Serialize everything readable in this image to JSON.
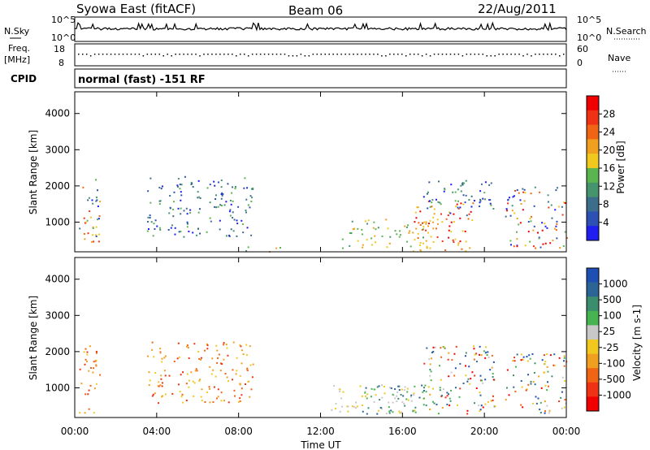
{
  "header": {
    "title": "Syowa East (fitACF)",
    "beam": "Beam 06",
    "date": "22/Aug/2011"
  },
  "top_panels": {
    "nsky_label": "N.Sky",
    "nsky_ticks": [
      "10^5",
      "10^0"
    ],
    "nsearch_label": "N.Search",
    "nsearch_ticks": [
      "10^5",
      "10^0"
    ],
    "freq_label": "Freq.",
    "freq_unit": "[MHz]",
    "freq_ticks": [
      "18",
      "8"
    ],
    "nave_label": "Nave",
    "nave_ticks": [
      "60",
      "0"
    ],
    "cpid_label": "CPID",
    "cpid_text": "normal (fast) -151 RF"
  },
  "chart_data": [
    {
      "type": "heatmap",
      "name": "power-panel",
      "ylabel": "Slant Range [km]",
      "yticks": [
        1000,
        2000,
        3000,
        4000
      ],
      "ylim": [
        180,
        4600
      ],
      "xticks": [
        "00:00",
        "04:00",
        "08:00",
        "12:00",
        "16:00",
        "20:00",
        "00:00"
      ],
      "xlim_hours": [
        0,
        24
      ],
      "colorbar": {
        "label": "Power [dB]",
        "ticks": [
          "4",
          "8",
          "12",
          "16",
          "20",
          "24",
          "28"
        ],
        "colors": [
          "#1e1ef0",
          "#2d50b4",
          "#3c6e8c",
          "#46946e",
          "#5ab450",
          "#f0c81e",
          "#f0a01e",
          "#f06414",
          "#f03214",
          "#f00000"
        ]
      },
      "regions": [
        {
          "t0": 0.2,
          "t1": 1.2,
          "r0": 300,
          "r1": 2200,
          "level": "mixed"
        },
        {
          "t0": 0.8,
          "t1": 1.2,
          "r0": 200,
          "r1": 700,
          "level": "high"
        },
        {
          "t0": 3.5,
          "t1": 8.7,
          "r0": 600,
          "r1": 2300,
          "level": "low"
        },
        {
          "t0": 8.0,
          "t1": 10.0,
          "r0": 200,
          "r1": 350,
          "level": "mid"
        },
        {
          "t0": 13.0,
          "t1": 17.5,
          "r0": 300,
          "r1": 1100,
          "level": "mid"
        },
        {
          "t0": 16.5,
          "t1": 19.5,
          "r0": 200,
          "r1": 1600,
          "level": "high"
        },
        {
          "t0": 17.0,
          "t1": 20.5,
          "r0": 1200,
          "r1": 2200,
          "level": "low"
        },
        {
          "t0": 21.0,
          "t1": 24.0,
          "r0": 300,
          "r1": 2000,
          "level": "mixed"
        }
      ]
    },
    {
      "type": "heatmap",
      "name": "velocity-panel",
      "ylabel": "Slant Range [km]",
      "yticks": [
        1000,
        2000,
        3000,
        4000
      ],
      "ylim": [
        180,
        4600
      ],
      "xticks": [
        "00:00",
        "04:00",
        "08:00",
        "12:00",
        "16:00",
        "20:00",
        "00:00"
      ],
      "xlabel": "Time UT",
      "xlim_hours": [
        0,
        24
      ],
      "colorbar": {
        "label": "Velocity [m s-1]",
        "ticks": [
          "1000",
          "500",
          "100",
          "25",
          "-25",
          "-100",
          "-500",
          "-1000"
        ],
        "colors": [
          "#1e50b4",
          "#2d6496",
          "#3c8c6e",
          "#46b450",
          "#c8c8c8",
          "#f0c81e",
          "#f0a01e",
          "#f06414",
          "#f03214",
          "#f00000"
        ]
      },
      "regions": [
        {
          "t0": 0.2,
          "t1": 1.2,
          "r0": 300,
          "r1": 2200,
          "level": "neg"
        },
        {
          "t0": 3.5,
          "t1": 8.7,
          "r0": 600,
          "r1": 2300,
          "level": "neg"
        },
        {
          "t0": 12.5,
          "t1": 17.0,
          "r0": 300,
          "r1": 1100,
          "level": "grey"
        },
        {
          "t0": 14.0,
          "t1": 18.0,
          "r0": 300,
          "r1": 1100,
          "level": "pos"
        },
        {
          "t0": 17.0,
          "t1": 20.5,
          "r0": 300,
          "r1": 2200,
          "level": "mixed"
        },
        {
          "t0": 21.0,
          "t1": 24.0,
          "r0": 300,
          "r1": 2000,
          "level": "mixed"
        }
      ]
    }
  ]
}
